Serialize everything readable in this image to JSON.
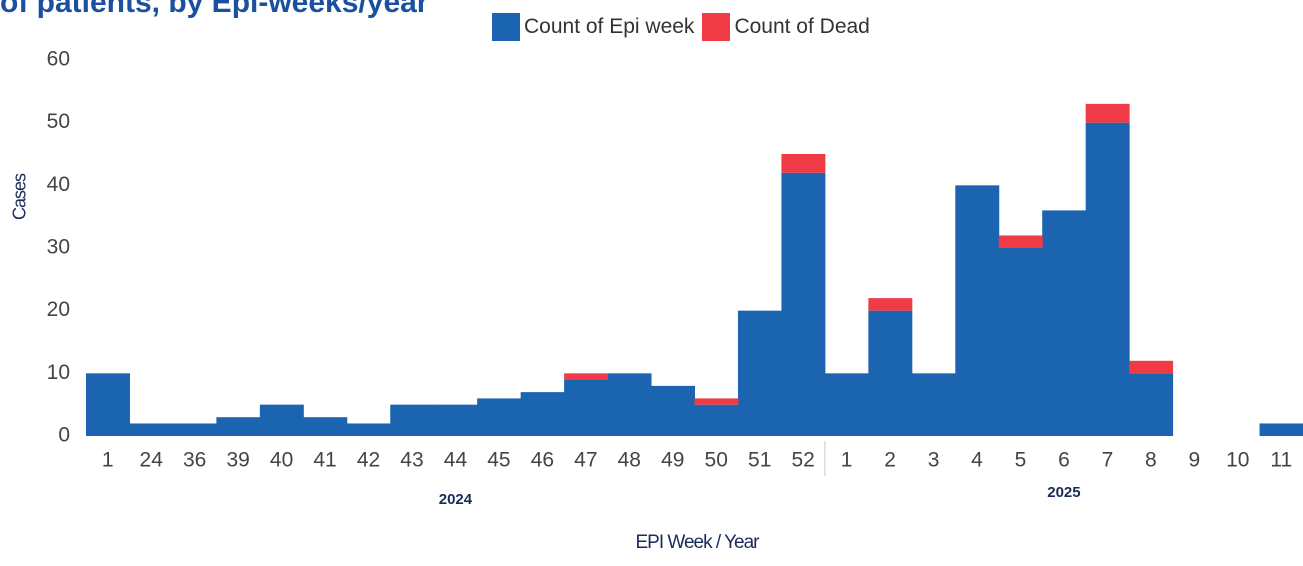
{
  "header": {
    "title_partial": "of patients, by Epi-weeks/year"
  },
  "colors": {
    "epi": "#1b64b0",
    "dead": "#ef3b46",
    "axis_text": "#444444",
    "label_text": "#1a2b5a"
  },
  "chart_data": {
    "type": "bar",
    "stacked": true,
    "xlabel": "EPI Week / Year",
    "ylabel": "Cases",
    "ylim": [
      0,
      60
    ],
    "yticks": [
      0,
      10,
      20,
      30,
      40,
      50,
      60
    ],
    "legend_position": "top-center",
    "categories": [
      "1",
      "24",
      "36",
      "39",
      "40",
      "41",
      "42",
      "43",
      "44",
      "45",
      "46",
      "47",
      "48",
      "49",
      "50",
      "51",
      "52",
      "1",
      "2",
      "3",
      "4",
      "5",
      "6",
      "7",
      "8",
      "9",
      "10",
      "11"
    ],
    "groups": [
      {
        "label": "2024",
        "start": 0,
        "end": 16
      },
      {
        "label": "2025",
        "start": 17,
        "end": 27
      }
    ],
    "series": [
      {
        "name": "Count of Epi week",
        "color": "#1b64b0",
        "values": [
          10,
          2,
          2,
          3,
          5,
          3,
          2,
          5,
          5,
          6,
          7,
          9,
          10,
          8,
          5,
          20,
          42,
          10,
          20,
          10,
          40,
          30,
          36,
          50,
          10,
          0,
          0,
          2
        ]
      },
      {
        "name": "Count of Dead",
        "color": "#ef3b46",
        "values": [
          0,
          0,
          0,
          0,
          0,
          0,
          0,
          0,
          0,
          0,
          0,
          1,
          0,
          0,
          1,
          0,
          3,
          0,
          2,
          0,
          0,
          2,
          0,
          3,
          2,
          0,
          0,
          0
        ]
      }
    ]
  }
}
